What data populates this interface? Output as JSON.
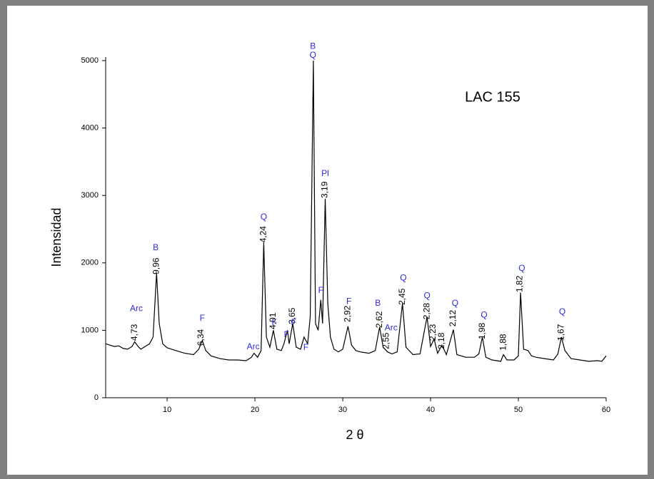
{
  "chart_data": {
    "type": "line",
    "title": "LAC 155",
    "xlabel": "2 θ",
    "ylabel": "Intensidad",
    "color": "#000000",
    "phase_color": "#2b2bd6",
    "xlim": [
      3,
      60
    ],
    "xticks": [
      10,
      20,
      30,
      40,
      50,
      60
    ],
    "ylim": [
      0,
      5000
    ],
    "yticks": [
      0,
      1000,
      2000,
      3000,
      4000,
      5000
    ],
    "x": [
      3,
      3.5,
      4,
      4.5,
      5,
      5.5,
      6,
      6.3,
      6.7,
      7,
      7.5,
      8,
      8.4,
      8.8,
      9.1,
      9.5,
      10,
      11,
      12,
      13,
      13.6,
      14,
      14.4,
      15,
      16,
      17,
      18,
      19,
      19.6,
      19.9,
      20.3,
      20.7,
      21.0,
      21.3,
      21.7,
      22.1,
      22.5,
      23,
      23.3,
      23.7,
      23.9,
      24.3,
      24.7,
      25.2,
      25.6,
      26,
      26.3,
      26.65,
      26.9,
      27.2,
      27.5,
      27.7,
      28.0,
      28.3,
      28.6,
      29,
      29.5,
      30,
      30.6,
      31,
      31.5,
      32,
      33,
      33.7,
      34.2,
      34.6,
      35.1,
      35.6,
      36.2,
      36.8,
      37.2,
      38,
      38.8,
      39.6,
      40,
      40.4,
      40.8,
      41.3,
      41.8,
      42.6,
      43,
      44,
      45,
      45.5,
      45.9,
      46.3,
      47,
      48,
      48.3,
      48.7,
      49.5,
      50,
      50.25,
      50.6,
      51.1,
      51.5,
      52,
      53,
      54,
      54.5,
      54.9,
      55.3,
      56,
      57,
      58,
      59,
      59.5,
      60
    ],
    "values": [
      800,
      780,
      760,
      770,
      730,
      720,
      760,
      830,
      760,
      720,
      760,
      800,
      900,
      1850,
      1100,
      800,
      740,
      700,
      660,
      640,
      720,
      850,
      700,
      620,
      580,
      560,
      560,
      550,
      600,
      660,
      600,
      700,
      2300,
      900,
      750,
      1000,
      720,
      700,
      800,
      1000,
      800,
      1100,
      750,
      720,
      900,
      800,
      1200,
      5000,
      1100,
      1000,
      1450,
      1100,
      2950,
      1400,
      900,
      720,
      680,
      720,
      1060,
      780,
      700,
      680,
      660,
      700,
      1050,
      750,
      680,
      650,
      680,
      1400,
      750,
      640,
      650,
      1200,
      760,
      870,
      660,
      780,
      640,
      1010,
      640,
      600,
      600,
      650,
      900,
      600,
      560,
      540,
      640,
      560,
      560,
      620,
      1560,
      720,
      700,
      620,
      600,
      580,
      560,
      650,
      900,
      700,
      580,
      560,
      540,
      550,
      540,
      620
    ],
    "peak_labels": [
      {
        "text": "4,73",
        "x": 6.3,
        "y": 845
      },
      {
        "text": "9,96",
        "x": 8.8,
        "y": 1830
      },
      {
        "text": "6,34",
        "x": 13.9,
        "y": 770
      },
      {
        "text": "4,24",
        "x": 21.0,
        "y": 2300
      },
      {
        "text": "4,01",
        "x": 22.1,
        "y": 1015
      },
      {
        "text": "3,65",
        "x": 24.3,
        "y": 1090
      },
      {
        "text": "3,19",
        "x": 28.0,
        "y": 2960
      },
      {
        "text": "2,92",
        "x": 30.6,
        "y": 1120
      },
      {
        "text": "2,62",
        "x": 34.2,
        "y": 1035
      },
      {
        "text": "2,55",
        "x": 35.0,
        "y": 720
      },
      {
        "text": "2,45",
        "x": 36.8,
        "y": 1375
      },
      {
        "text": "2,28",
        "x": 39.6,
        "y": 1160
      },
      {
        "text": "2,23",
        "x": 40.3,
        "y": 845
      },
      {
        "text": "2,18",
        "x": 41.3,
        "y": 720
      },
      {
        "text": "2,12",
        "x": 42.6,
        "y": 1055
      },
      {
        "text": "1,98",
        "x": 45.9,
        "y": 865
      },
      {
        "text": "1,88",
        "x": 48.3,
        "y": 700
      },
      {
        "text": "1,82",
        "x": 50.2,
        "y": 1565
      },
      {
        "text": "1,67",
        "x": 54.9,
        "y": 845
      }
    ],
    "phase_labels": [
      {
        "text": "Arc",
        "x": 6.5,
        "y": 1320
      },
      {
        "text": "B",
        "x": 8.7,
        "y": 2220
      },
      {
        "text": "F",
        "x": 14.0,
        "y": 1175
      },
      {
        "text": "Arc",
        "x": 19.8,
        "y": 750
      },
      {
        "text": "Q",
        "x": 21.0,
        "y": 2675
      },
      {
        "text": "F",
        "x": 22.2,
        "y": 1110
      },
      {
        "text": "F",
        "x": 23.6,
        "y": 930
      },
      {
        "text": "F",
        "x": 24.4,
        "y": 1110
      },
      {
        "text": "F",
        "x": 25.8,
        "y": 740
      },
      {
        "text": "B",
        "x": 26.6,
        "y": 5210
      },
      {
        "text": "Q",
        "x": 26.6,
        "y": 5075
      },
      {
        "text": "Pl",
        "x": 28.0,
        "y": 3320
      },
      {
        "text": "F",
        "x": 27.5,
        "y": 1585
      },
      {
        "text": "F",
        "x": 30.7,
        "y": 1425
      },
      {
        "text": "B",
        "x": 34.0,
        "y": 1395
      },
      {
        "text": "Arc",
        "x": 35.5,
        "y": 1035
      },
      {
        "text": "Q",
        "x": 36.9,
        "y": 1775
      },
      {
        "text": "Q",
        "x": 39.6,
        "y": 1510
      },
      {
        "text": "Q",
        "x": 42.8,
        "y": 1395
      },
      {
        "text": "Q",
        "x": 46.1,
        "y": 1225
      },
      {
        "text": "Q",
        "x": 50.4,
        "y": 1915
      },
      {
        "text": "Q",
        "x": 55.0,
        "y": 1270
      }
    ]
  }
}
